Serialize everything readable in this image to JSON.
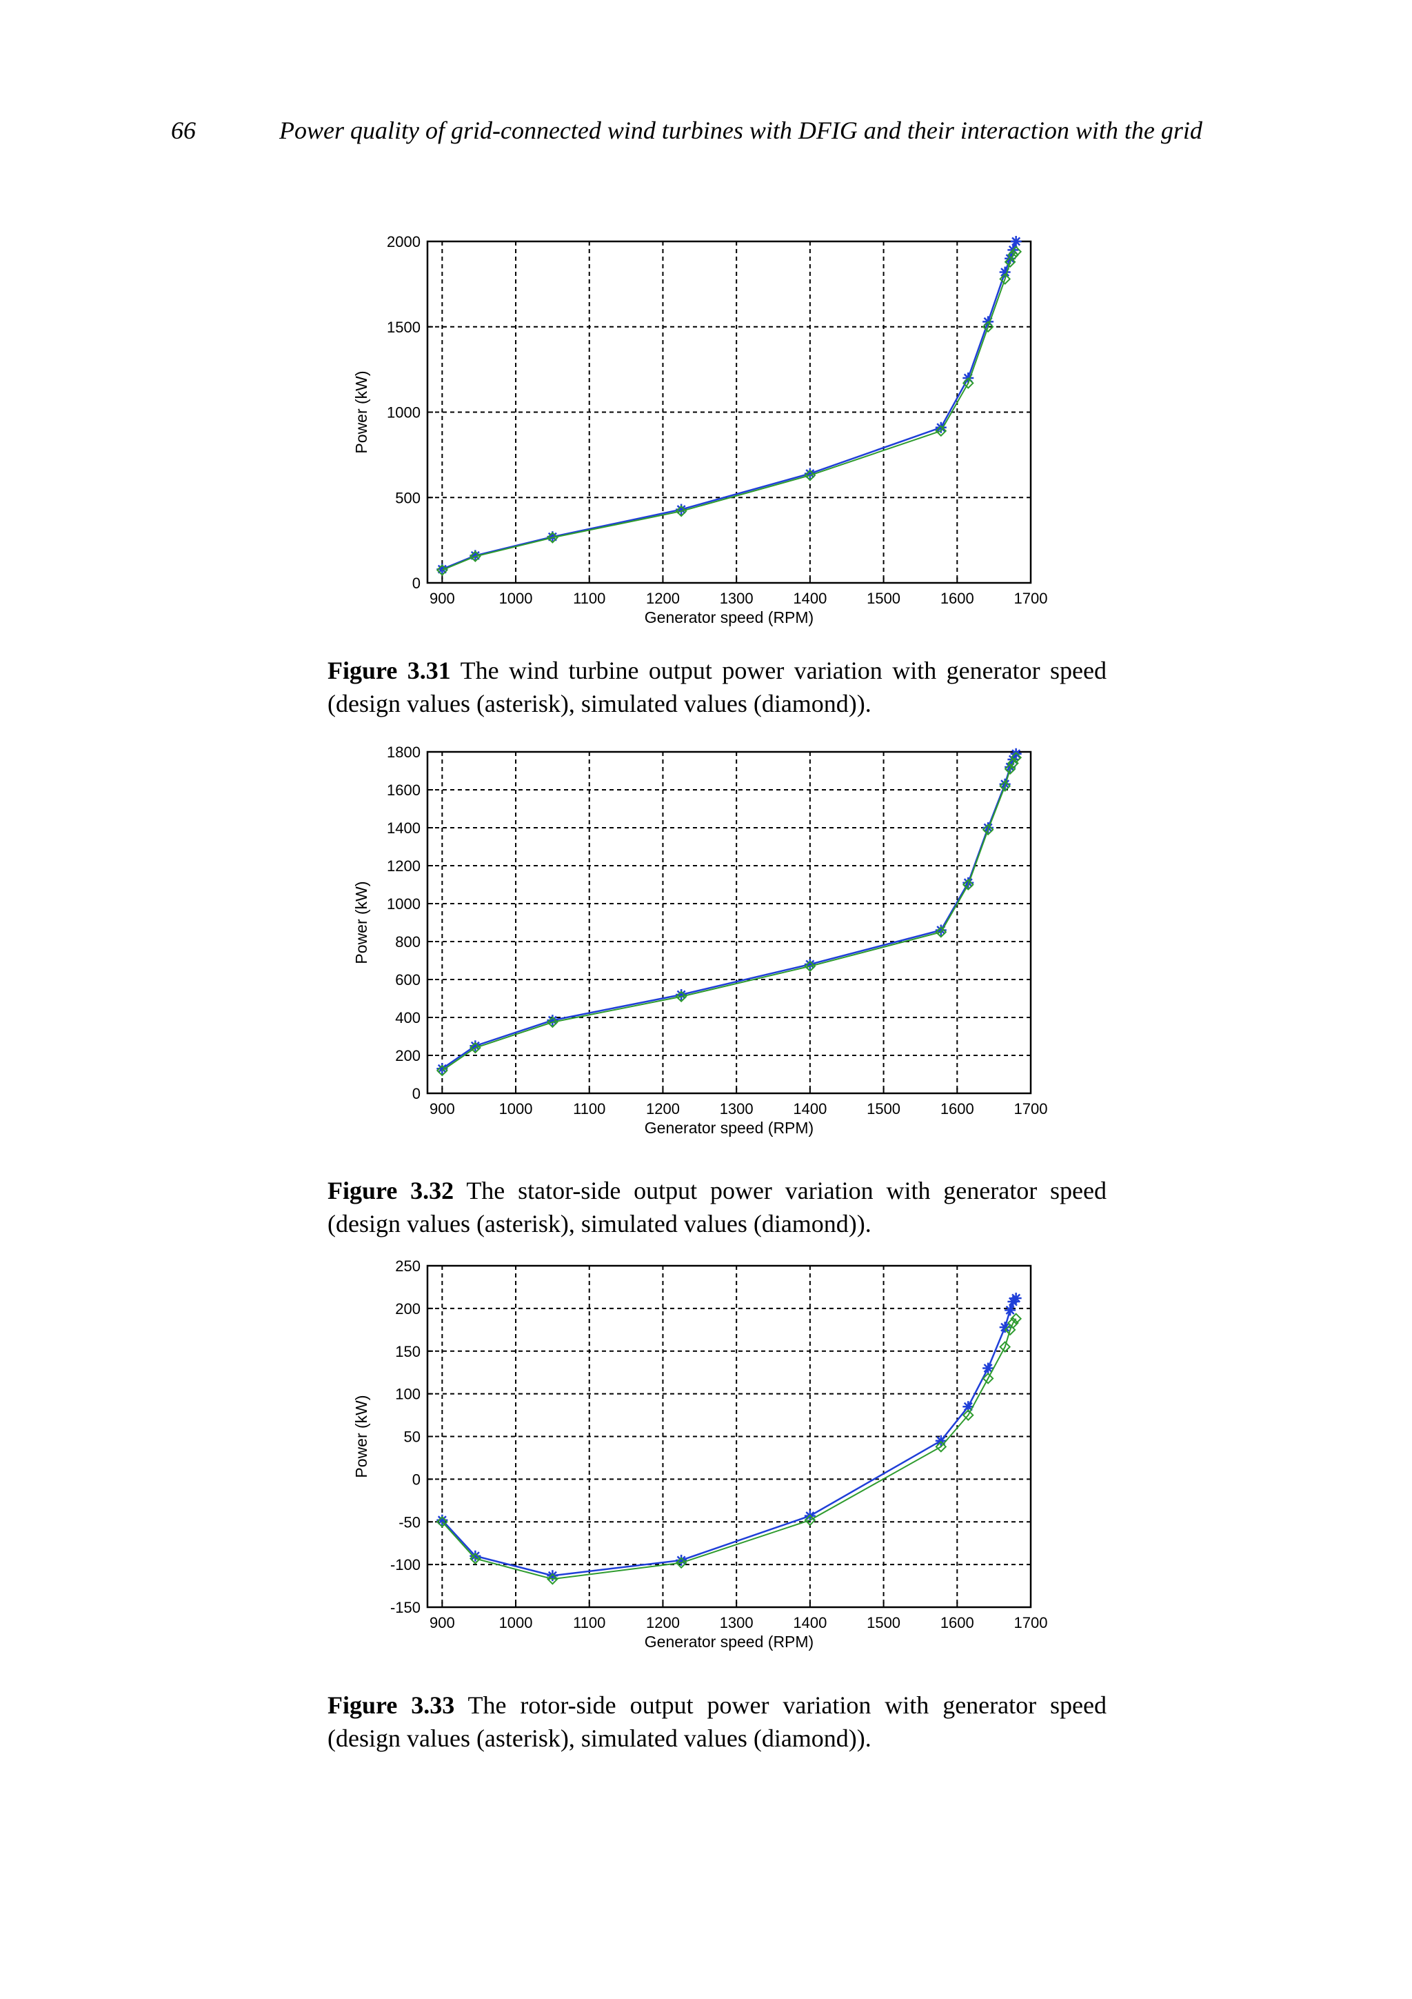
{
  "header": {
    "page_number": "66",
    "running_title": "Power quality of grid-connected wind turbines with DFIG and their interaction with the grid"
  },
  "colors": {
    "design": "#1f3fd8",
    "simulated": "#2e9b2e",
    "grid": "#000000"
  },
  "figures": [
    {
      "label": "Figure 3.31",
      "caption": "The wind turbine output power variation with generator speed (design values (asterisk), simulated values (diamond))."
    },
    {
      "label": "Figure 3.32",
      "caption": "The stator-side output power variation with generator speed (design values (asterisk), simulated values (diamond))."
    },
    {
      "label": "Figure 3.33",
      "caption": "The rotor-side output power variation with generator speed (design values (asterisk), simulated values (diamond))."
    }
  ],
  "chart_data": [
    {
      "type": "line",
      "xlabel": "Generator speed (RPM)",
      "ylabel": "Power (kW)",
      "xlim": [
        880,
        1700
      ],
      "ylim": [
        0,
        2000
      ],
      "xticks": [
        900,
        1000,
        1100,
        1200,
        1300,
        1400,
        1500,
        1600,
        1700
      ],
      "yticks": [
        0,
        500,
        1000,
        1500,
        2000
      ],
      "grid": true,
      "series": [
        {
          "marker": "asterisk",
          "x": [
            900,
            945,
            1050,
            1225,
            1400,
            1578,
            1615,
            1642,
            1665,
            1672,
            1676,
            1680
          ],
          "y": [
            80,
            160,
            270,
            430,
            640,
            910,
            1200,
            1530,
            1820,
            1900,
            1950,
            2000
          ]
        },
        {
          "marker": "diamond",
          "x": [
            900,
            945,
            1050,
            1225,
            1400,
            1578,
            1615,
            1642,
            1665,
            1672,
            1676,
            1680
          ],
          "y": [
            75,
            155,
            265,
            420,
            630,
            890,
            1170,
            1500,
            1780,
            1880,
            1920,
            1940
          ]
        }
      ]
    },
    {
      "type": "line",
      "xlabel": "Generator speed (RPM)",
      "ylabel": "Power (kW)",
      "xlim": [
        880,
        1700
      ],
      "ylim": [
        0,
        1800
      ],
      "xticks": [
        900,
        1000,
        1100,
        1200,
        1300,
        1400,
        1500,
        1600,
        1700
      ],
      "yticks": [
        0,
        200,
        400,
        600,
        800,
        1000,
        1200,
        1400,
        1600,
        1800
      ],
      "grid": true,
      "series": [
        {
          "marker": "asterisk",
          "x": [
            900,
            945,
            1050,
            1225,
            1400,
            1578,
            1615,
            1642,
            1665,
            1672,
            1676,
            1680
          ],
          "y": [
            130,
            250,
            385,
            520,
            680,
            860,
            1110,
            1400,
            1630,
            1720,
            1760,
            1790
          ]
        },
        {
          "marker": "diamond",
          "x": [
            900,
            945,
            1050,
            1225,
            1400,
            1578,
            1615,
            1642,
            1665,
            1672,
            1676,
            1680
          ],
          "y": [
            120,
            240,
            375,
            510,
            670,
            850,
            1100,
            1390,
            1620,
            1710,
            1740,
            1770
          ]
        }
      ]
    },
    {
      "type": "line",
      "xlabel": "Generator speed (RPM)",
      "ylabel": "Power (kW)",
      "xlim": [
        880,
        1700
      ],
      "ylim": [
        -150,
        250
      ],
      "xticks": [
        900,
        1000,
        1100,
        1200,
        1300,
        1400,
        1500,
        1600,
        1700
      ],
      "yticks": [
        -150,
        -100,
        -50,
        0,
        50,
        100,
        150,
        200,
        250
      ],
      "grid": true,
      "series": [
        {
          "marker": "asterisk",
          "x": [
            900,
            945,
            1050,
            1225,
            1400,
            1578,
            1615,
            1642,
            1665,
            1672,
            1676,
            1680
          ],
          "y": [
            -48,
            -90,
            -113,
            -95,
            -43,
            45,
            85,
            130,
            178,
            198,
            208,
            212
          ]
        },
        {
          "marker": "diamond",
          "x": [
            900,
            945,
            1050,
            1225,
            1400,
            1578,
            1615,
            1642,
            1665,
            1672,
            1676,
            1680
          ],
          "y": [
            -50,
            -93,
            -117,
            -98,
            -48,
            38,
            75,
            118,
            155,
            175,
            183,
            188
          ]
        }
      ]
    }
  ]
}
